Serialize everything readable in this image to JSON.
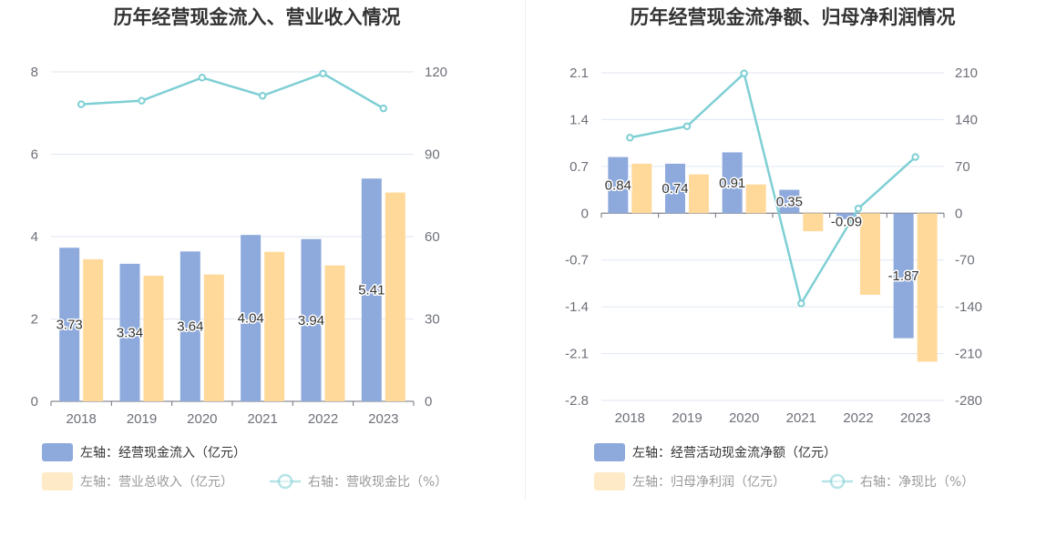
{
  "chart_data": [
    {
      "type": "bar",
      "title": "历年经营现金流入、营业收入情况",
      "categories": [
        "2018",
        "2019",
        "2020",
        "2021",
        "2022",
        "2023"
      ],
      "left_axis": {
        "ylim": [
          0,
          8
        ],
        "ticks": [
          "0",
          "2",
          "4",
          "6",
          "8"
        ]
      },
      "right_axis": {
        "ylim": [
          0,
          120
        ],
        "ticks": [
          "0",
          "30",
          "60",
          "90",
          "120"
        ]
      },
      "grid": true,
      "legend_position": "bottom",
      "series": [
        {
          "name": "左轴：经营现金流入（亿元）",
          "type": "bar",
          "axis": "left",
          "color": "#8eaadc",
          "values": [
            3.73,
            3.34,
            3.64,
            4.04,
            3.94,
            5.41
          ],
          "labels": [
            "3.73",
            "3.34",
            "3.64",
            "4.04",
            "3.94",
            "5.41"
          ]
        },
        {
          "name": "左轴：营业总收入（亿元）",
          "type": "bar",
          "axis": "left",
          "color": "#ffd99a",
          "values": [
            3.45,
            3.05,
            3.08,
            3.63,
            3.3,
            5.07
          ]
        },
        {
          "name": "右轴：营收现金比（%）",
          "type": "line",
          "axis": "right",
          "color": "#7ecfd4",
          "values": [
            108.2,
            109.5,
            117.9,
            111.3,
            119.4,
            106.7
          ]
        }
      ]
    },
    {
      "type": "bar",
      "title": "历年经营现金流净额、归母净利润情况",
      "categories": [
        "2018",
        "2019",
        "2020",
        "2021",
        "2022",
        "2023"
      ],
      "left_axis": {
        "ylim": [
          -2.8,
          2.1
        ],
        "ticks": [
          "2.1",
          "1.4",
          "0.7",
          "0",
          "-0.7",
          "-1.4",
          "-2.1",
          "-2.8"
        ]
      },
      "right_axis": {
        "ylim": [
          -280,
          210
        ],
        "ticks": [
          "210",
          "140",
          "70",
          "0",
          "-70",
          "-140",
          "-210",
          "-280"
        ]
      },
      "grid": true,
      "legend_position": "bottom",
      "series": [
        {
          "name": "左轴：经营活动现金流净额（亿元）",
          "type": "bar",
          "axis": "left",
          "color": "#8eaadc",
          "values": [
            0.84,
            0.74,
            0.91,
            0.35,
            -0.09,
            -1.87
          ],
          "labels": [
            "0.84",
            "0.74",
            "0.91",
            "0.35",
            "-0.09",
            "-1.87"
          ]
        },
        {
          "name": "左轴：归母净利润（亿元）",
          "type": "bar",
          "axis": "left",
          "color": "#ffd99a",
          "values": [
            0.74,
            0.58,
            0.43,
            -0.27,
            -1.22,
            -2.22
          ]
        },
        {
          "name": "右轴：净现比（%）",
          "type": "line",
          "axis": "right",
          "color": "#7ecfd4",
          "values": [
            113,
            130,
            209,
            -135,
            7,
            84
          ]
        }
      ]
    }
  ]
}
